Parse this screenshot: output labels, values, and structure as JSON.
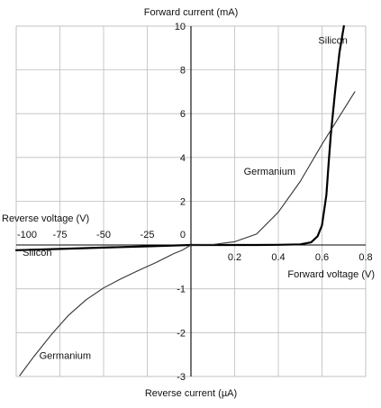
{
  "chart_data": {
    "type": "line",
    "x_axis": {
      "forward_label": "Forward voltage (V)",
      "reverse_label": "Reverse voltage (V)",
      "forward_ticks": [
        "0.2",
        "0.4",
        "0.6",
        "0.8"
      ],
      "reverse_ticks": [
        "-100",
        "-75",
        "-50",
        "-25"
      ],
      "forward_range": [
        0,
        0.8
      ],
      "reverse_range": [
        -100,
        0
      ]
    },
    "y_axis": {
      "forward_label": "Forward current (mA)",
      "reverse_label": "Reverse current (µA)",
      "forward_ticks": [
        "2",
        "4",
        "6",
        "8",
        "10"
      ],
      "reverse_ticks": [
        "-1",
        "-2",
        "-3"
      ],
      "origin_tick": "0",
      "forward_range": [
        0,
        10
      ],
      "reverse_range": [
        -3,
        0
      ]
    },
    "grid": true,
    "series": [
      {
        "name": "Silicon",
        "color": "#000000",
        "forward": {
          "x": [
            0,
            0.1,
            0.2,
            0.3,
            0.4,
            0.5,
            0.55,
            0.58,
            0.6,
            0.62,
            0.63,
            0.64,
            0.66,
            0.68,
            0.7
          ],
          "y": [
            0,
            0,
            0,
            0,
            0.01,
            0.03,
            0.12,
            0.4,
            0.9,
            2.3,
            3.7,
            5.0,
            7.0,
            8.8,
            10
          ]
        },
        "reverse": {
          "x": [
            0,
            -25,
            -50,
            -75,
            -100
          ],
          "y": [
            0,
            -0.03,
            -0.06,
            -0.09,
            -0.12
          ]
        }
      },
      {
        "name": "Germanium",
        "color": "#333333",
        "forward": {
          "x": [
            0,
            0.1,
            0.2,
            0.3,
            0.4,
            0.5,
            0.6,
            0.7,
            0.75
          ],
          "y": [
            0,
            0.02,
            0.15,
            0.5,
            1.5,
            2.9,
            4.6,
            6.2,
            7.0
          ]
        },
        "reverse": {
          "x": [
            0,
            -5,
            -10,
            -20,
            -30,
            -40,
            -50,
            -60,
            -70,
            -80,
            -90,
            -98
          ],
          "y": [
            0,
            -0.12,
            -0.2,
            -0.4,
            -0.58,
            -0.77,
            -0.98,
            -1.25,
            -1.6,
            -2.05,
            -2.55,
            -2.98
          ]
        }
      }
    ],
    "annotations": [
      {
        "text": "Silicon",
        "x": 0.65,
        "y": 9.2
      },
      {
        "text": "Germanium",
        "x": 0.36,
        "y": 3.2
      },
      {
        "text": "Silicon",
        "x": -88,
        "y": -0.25
      },
      {
        "text": "Germanium",
        "x": -72,
        "y": -2.6
      }
    ]
  }
}
